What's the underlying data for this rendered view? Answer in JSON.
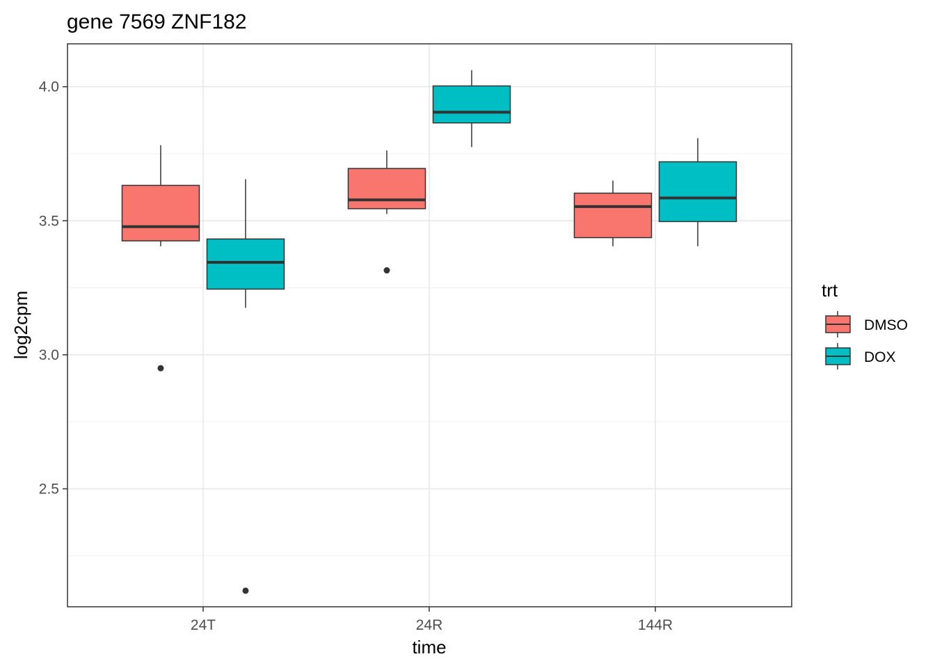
{
  "chart_data": {
    "type": "boxplot",
    "title": "gene 7569 ZNF182",
    "xlabel": "time",
    "ylabel": "log2cpm",
    "categories": [
      "24T",
      "24R",
      "144R"
    ],
    "yticks": [
      2.5,
      3.0,
      3.5,
      4.0
    ],
    "ytick_labels": [
      "2.5",
      "3.0",
      "3.5",
      "4.0"
    ],
    "ylim": [
      2.06,
      4.16
    ],
    "grid": true,
    "legend": {
      "title": "trt",
      "placement": "right",
      "entries": [
        "DMSO",
        "DOX"
      ]
    },
    "series": [
      {
        "name": "DMSO",
        "color": "#F8766D",
        "boxes": [
          {
            "category": "24T",
            "lower_whisker": 3.405,
            "q1": 3.425,
            "median": 3.478,
            "q3": 3.632,
            "upper_whisker": 3.782,
            "outliers": [
              2.95
            ]
          },
          {
            "category": "24R",
            "lower_whisker": 3.525,
            "q1": 3.545,
            "median": 3.578,
            "q3": 3.695,
            "upper_whisker": 3.762,
            "outliers": [
              3.315
            ]
          },
          {
            "category": "144R",
            "lower_whisker": 3.405,
            "q1": 3.437,
            "median": 3.553,
            "q3": 3.603,
            "upper_whisker": 3.65,
            "outliers": []
          }
        ]
      },
      {
        "name": "DOX",
        "color": "#00BFC4",
        "boxes": [
          {
            "category": "24T",
            "lower_whisker": 3.175,
            "q1": 3.245,
            "median": 3.345,
            "q3": 3.432,
            "upper_whisker": 3.655,
            "outliers": [
              2.12
            ]
          },
          {
            "category": "24R",
            "lower_whisker": 3.775,
            "q1": 3.865,
            "median": 3.905,
            "q3": 4.003,
            "upper_whisker": 4.062,
            "outliers": []
          },
          {
            "category": "144R",
            "lower_whisker": 3.405,
            "q1": 3.497,
            "median": 3.585,
            "q3": 3.72,
            "upper_whisker": 3.808,
            "outliers": []
          }
        ]
      }
    ]
  }
}
